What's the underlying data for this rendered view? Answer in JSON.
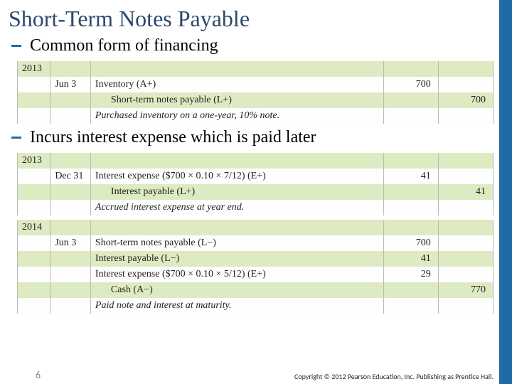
{
  "title": "Short-Term Notes Payable",
  "bullets": {
    "b1": "Common form of financing",
    "b2": "Incurs interest expense which is paid later"
  },
  "ledger1": {
    "r0": {
      "year": "2013"
    },
    "r1": {
      "date": "Jun 3",
      "desc": "Inventory     (A+)",
      "dr": "700"
    },
    "r2": {
      "desc": "Short-term notes payable     (L+)",
      "cr": "700"
    },
    "r3": {
      "desc": "Purchased inventory on a one-year, 10% note."
    }
  },
  "ledger2": {
    "r0": {
      "year": "2013"
    },
    "r1": {
      "date": "Dec 31",
      "desc": "Interest expense ($700 × 0.10 × 7/12)     (E+)",
      "dr": "41"
    },
    "r2": {
      "desc": "Interest payable     (L+)",
      "cr": "41"
    },
    "r3": {
      "desc": "Accrued interest expense at year end."
    }
  },
  "ledger3": {
    "r0": {
      "year": "2014"
    },
    "r1": {
      "date": "Jun 3",
      "desc": "Short-term notes payable     (L−)",
      "dr": "700"
    },
    "r2": {
      "desc": "Interest payable     (L−)",
      "dr": "41"
    },
    "r3": {
      "desc": "Interest expense ($700 × 0.10 × 5/12)     (E+)",
      "dr": "29"
    },
    "r4": {
      "desc": "Cash     (A−)",
      "cr": "770"
    },
    "r5": {
      "desc": "Paid note and interest at maturity."
    }
  },
  "footer": {
    "page": "6",
    "copyright": "Copyright © 2012 Pearson Education, Inc. Publishing as Prentice Hall."
  },
  "colors": {
    "accent": "#1f6ba8",
    "green_band": "#deeac2",
    "title_color": "#2a4a6b"
  }
}
